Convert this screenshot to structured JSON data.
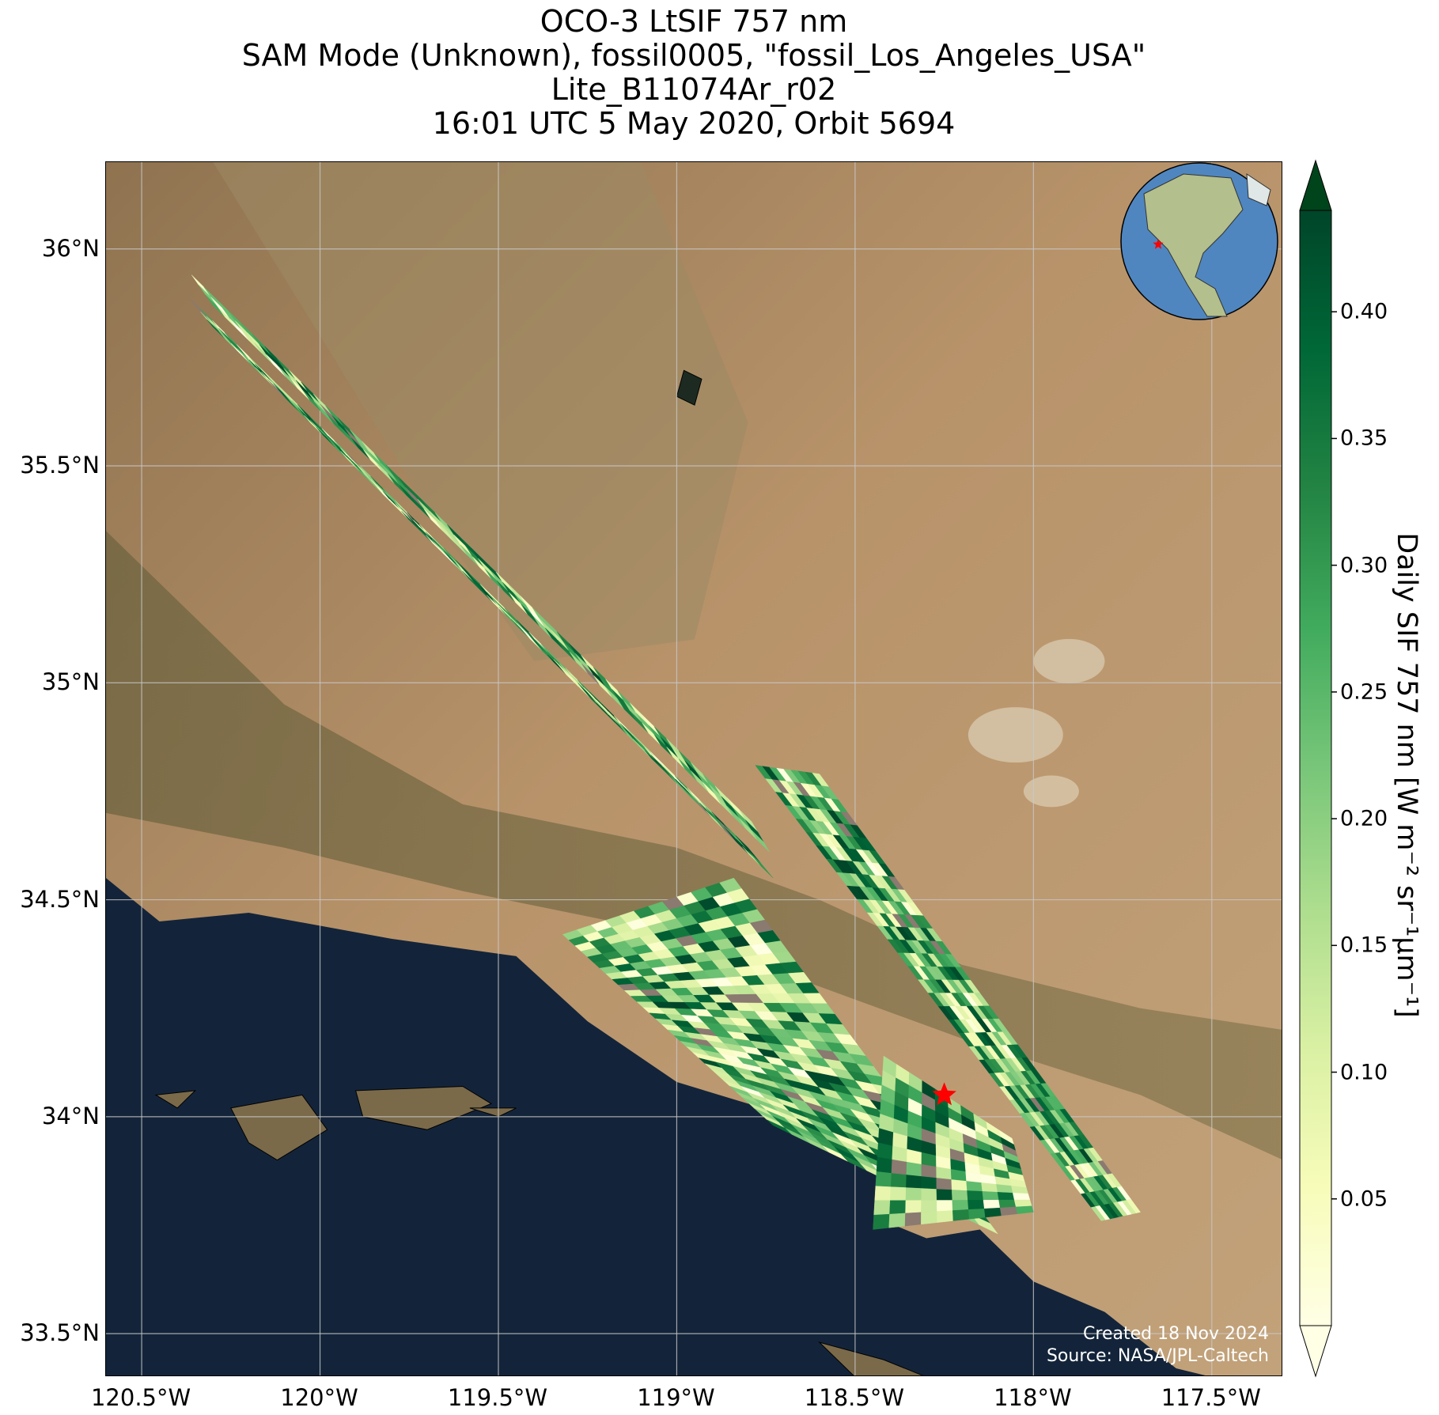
{
  "title": {
    "line1": "OCO-3 LtSIF 757 nm",
    "line2": "SAM Mode (Unknown), fossil0005, \"fossil_Los_Angeles_USA\"",
    "line3": "Lite_B11074Ar_r02",
    "line4": "16:01 UTC 5 May 2020, Orbit 5694"
  },
  "map": {
    "lon_range": [
      -120.6,
      -117.3
    ],
    "lat_range": [
      33.4,
      36.2
    ],
    "lat_ticks": [
      {
        "value": 36.0,
        "label": "36°N"
      },
      {
        "value": 35.5,
        "label": "35.5°N"
      },
      {
        "value": 35.0,
        "label": "35°N"
      },
      {
        "value": 34.5,
        "label": "34.5°N"
      },
      {
        "value": 34.0,
        "label": "34°N"
      },
      {
        "value": 33.5,
        "label": "33.5°N"
      }
    ],
    "lon_ticks": [
      {
        "value": -120.5,
        "label": "120.5°W"
      },
      {
        "value": -120.0,
        "label": "120°W"
      },
      {
        "value": -119.5,
        "label": "119.5°W"
      },
      {
        "value": -119.0,
        "label": "119°W"
      },
      {
        "value": -118.5,
        "label": "118.5°W"
      },
      {
        "value": -118.0,
        "label": "118°W"
      },
      {
        "value": -117.5,
        "label": "117.5°W"
      }
    ],
    "gridlines": true,
    "target_marker": {
      "lon": -118.25,
      "lat": 34.05,
      "symbol": "star",
      "color": "#ff0000"
    },
    "colors": {
      "land": "#b08c62",
      "ocean": "#13243a",
      "grid": "#c8c8c8"
    },
    "credit_line1": "Created 18 Nov 2024",
    "credit_line2": "Source: NASA/JPL-Caltech"
  },
  "swaths": [
    {
      "corners": [
        [
          -120.36,
          35.94
        ],
        [
          -120.3,
          35.87
        ],
        [
          -118.74,
          34.61
        ],
        [
          -118.79,
          34.68
        ]
      ],
      "rows": 46,
      "cols": 3
    },
    {
      "corners": [
        [
          -120.37,
          35.89
        ],
        [
          -120.3,
          35.82
        ],
        [
          -118.73,
          34.55
        ],
        [
          -118.8,
          34.62
        ]
      ],
      "rows": 46,
      "cols": 4
    },
    {
      "corners": [
        [
          -118.78,
          34.81
        ],
        [
          -118.6,
          34.79
        ],
        [
          -117.7,
          33.78
        ],
        [
          -117.81,
          33.76
        ]
      ],
      "rows": 34,
      "cols": 9
    },
    {
      "corners": [
        [
          -119.32,
          34.42
        ],
        [
          -118.84,
          34.55
        ],
        [
          -118.1,
          33.73
        ],
        [
          -118.73,
          33.98
        ]
      ],
      "rows": 34,
      "cols": 12
    },
    {
      "corners": [
        [
          -118.42,
          34.14
        ],
        [
          -118.06,
          33.95
        ],
        [
          -118.0,
          33.78
        ],
        [
          -118.45,
          33.74
        ]
      ],
      "rows": 12,
      "cols": 10
    }
  ],
  "colorbar": {
    "label": "Daily SIF 757 nm [W m⁻² sr⁻¹μm⁻¹]",
    "colormap": "YlGn",
    "min": 0.0,
    "max": 0.44,
    "extend": "both",
    "ticks": [
      {
        "value": 0.05,
        "label": "0.05"
      },
      {
        "value": 0.1,
        "label": "0.10"
      },
      {
        "value": 0.15,
        "label": "0.15"
      },
      {
        "value": 0.2,
        "label": "0.20"
      },
      {
        "value": 0.25,
        "label": "0.25"
      },
      {
        "value": 0.3,
        "label": "0.30"
      },
      {
        "value": 0.35,
        "label": "0.35"
      },
      {
        "value": 0.4,
        "label": "0.40"
      }
    ]
  },
  "inset_globe": {
    "center_lon": -100,
    "center_lat": 40,
    "marker_lon": -118.25,
    "marker_lat": 34.05
  }
}
